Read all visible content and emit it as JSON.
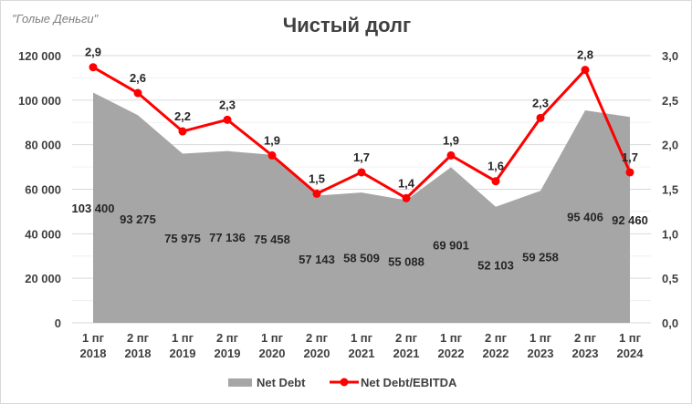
{
  "source": "\"Голые Деньги\"",
  "chart_data": {
    "type": "area+line",
    "title": "Чистый долг",
    "categories": [
      [
        "1 пг",
        "2018"
      ],
      [
        "2 пг",
        "2018"
      ],
      [
        "1 пг",
        "2019"
      ],
      [
        "2 пг",
        "2019"
      ],
      [
        "1 пг",
        "2020"
      ],
      [
        "2 пг",
        "2020"
      ],
      [
        "1 пг",
        "2021"
      ],
      [
        "2 пг",
        "2021"
      ],
      [
        "1 пг",
        "2022"
      ],
      [
        "2 пг",
        "2022"
      ],
      [
        "1 пг",
        "2023"
      ],
      [
        "2 пг",
        "2023"
      ],
      [
        "1 пг",
        "2024"
      ]
    ],
    "series": [
      {
        "name": "Net Debt",
        "type": "area",
        "axis": "left",
        "color": "#a6a6a6",
        "values": [
          103400,
          93275,
          75975,
          77136,
          75458,
          57143,
          58509,
          55088,
          69901,
          52103,
          59258,
          95406,
          92460
        ],
        "labels": [
          "103 400",
          "93 275",
          "75 975",
          "77 136",
          "75 458",
          "57 143",
          "58 509",
          "55 088",
          "69 901",
          "52 103",
          "59 258",
          "95 406",
          "92 460"
        ]
      },
      {
        "name": "Net Debt/EBITDA",
        "type": "line",
        "axis": "right",
        "color": "#ff0000",
        "values": [
          2.87,
          2.58,
          2.15,
          2.28,
          1.88,
          1.45,
          1.69,
          1.4,
          1.88,
          1.59,
          2.3,
          2.84,
          1.69
        ],
        "labels": [
          "2,9",
          "2,6",
          "2,2",
          "2,3",
          "1,9",
          "1,5",
          "1,7",
          "1,4",
          "1,9",
          "1,6",
          "2,3",
          "2,8",
          "1,7"
        ]
      }
    ],
    "left_axis": {
      "range": [
        0,
        120000
      ],
      "ticks": [
        "0",
        "20 000",
        "40 000",
        "60 000",
        "80 000",
        "100 000",
        "120 000"
      ]
    },
    "right_axis": {
      "range": [
        0,
        3
      ],
      "ticks": [
        "0,0",
        "0,5",
        "1,0",
        "1,5",
        "2,0",
        "2,5",
        "3,0"
      ]
    },
    "grid": true,
    "legend": "bottom"
  }
}
